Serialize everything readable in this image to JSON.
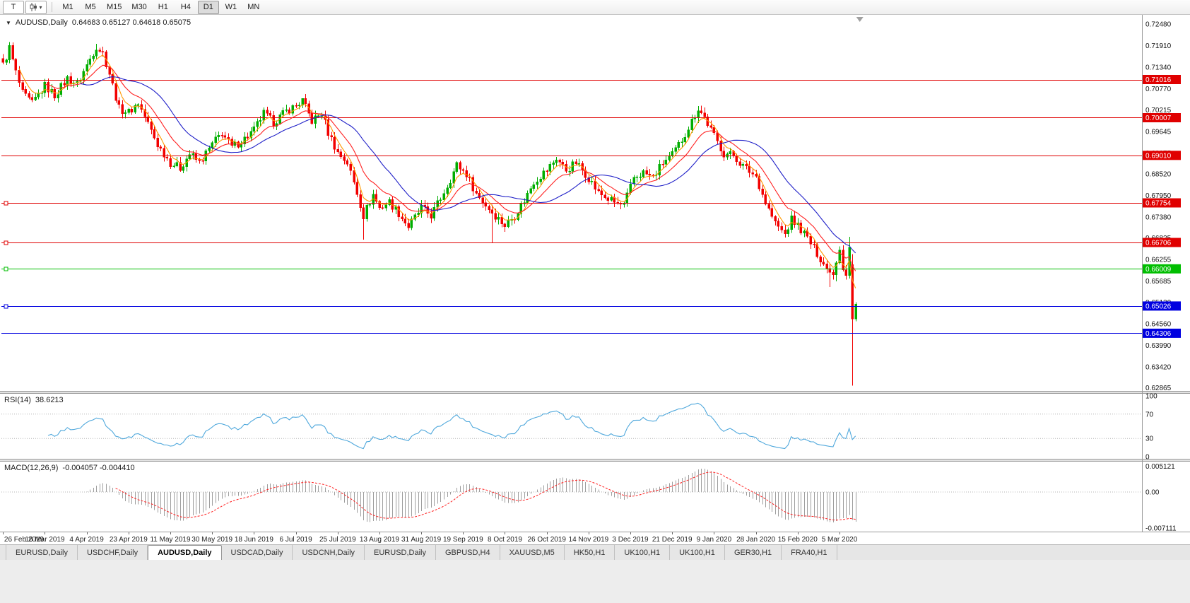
{
  "toolbar": {
    "tool_button": "T",
    "timeframes": [
      "M1",
      "M5",
      "M15",
      "M30",
      "H1",
      "H4",
      "D1",
      "W1",
      "MN"
    ],
    "active_timeframe": "D1"
  },
  "title": {
    "collapse_icon": "▼",
    "symbol": "AUDUSD,Daily",
    "ohlc": "0.64683 0.65127 0.64618 0.65075"
  },
  "rsi_panel": {
    "label": "RSI(14)",
    "value": "38.6213",
    "ticks": [
      "100",
      "70",
      "30",
      "0"
    ]
  },
  "macd_panel": {
    "label": "MACD(12,26,9)",
    "values": "-0.004057 -0.004410",
    "ticks": [
      "0.005121",
      "0.00",
      "-0.007111"
    ]
  },
  "tabs": {
    "items": [
      "EURUSD,Daily",
      "USDCHF,Daily",
      "AUDUSD,Daily",
      "USDCAD,Daily",
      "USDCNH,Daily",
      "EURUSD,Daily",
      "GBPUSD,H4",
      "XAUUSD,M5",
      "HK50,H1",
      "UK100,H1",
      "UK100,H1",
      "GER30,H1",
      "FRA40,H1"
    ],
    "active_index": 2
  },
  "colors": {
    "candle_up": "#00AE00",
    "candle_down": "#F20000",
    "hline_red": "#E00000",
    "hline_green": "#00BE00",
    "hline_blue": "#0000E0",
    "rsi_line": "#4FA8DC",
    "macd_hist": "#9E9E9E",
    "macd_signal": "#FF2222",
    "level_dotted": "#B4B4B4"
  },
  "chart_data": {
    "type": "candlestick",
    "symbol": "AUDUSD",
    "period": "Daily",
    "current_bar": {
      "open": 0.64683,
      "high": 0.65127,
      "low": 0.64618,
      "close": 0.65075
    },
    "y_range": [
      0.6278,
      0.7269
    ],
    "y_ticks": [
      "0.72480",
      "0.71910",
      "0.71340",
      "0.70770",
      "0.70215",
      "0.69645",
      "0.69075",
      "0.68520",
      "0.67950",
      "0.67380",
      "0.66825",
      "0.66255",
      "0.65685",
      "0.65130",
      "0.64560",
      "0.63990",
      "0.63420",
      "0.62865"
    ],
    "x_labels": [
      "26 Feb 2019",
      "16 Mar 2019",
      "4 Apr 2019",
      "23 Apr 2019",
      "11 May 2019",
      "30 May 2019",
      "18 Jun 2019",
      "6 Jul 2019",
      "25 Jul 2019",
      "13 Aug 2019",
      "31 Aug 2019",
      "19 Sep 2019",
      "8 Oct 2019",
      "26 Oct 2019",
      "14 Nov 2019",
      "3 Dec 2019",
      "21 Dec 2019",
      "9 Jan 2020",
      "28 Jan 2020",
      "15 Feb 2020",
      "5 Mar 2020"
    ],
    "x_label_indices": [
      0,
      13,
      26,
      39,
      52,
      65,
      78,
      91,
      104,
      117,
      130,
      143,
      156,
      169,
      182,
      195,
      208,
      221,
      234,
      247,
      260
    ],
    "bars_total": 266,
    "trend_anchors": [
      [
        0,
        0.714
      ],
      [
        2,
        0.7185
      ],
      [
        4,
        0.712
      ],
      [
        6,
        0.7065
      ],
      [
        9,
        0.7038
      ],
      [
        13,
        0.7085
      ],
      [
        16,
        0.706
      ],
      [
        20,
        0.7105
      ],
      [
        23,
        0.709
      ],
      [
        26,
        0.714
      ],
      [
        29,
        0.719
      ],
      [
        31,
        0.7172
      ],
      [
        33,
        0.7118
      ],
      [
        36,
        0.7025
      ],
      [
        39,
        0.7015
      ],
      [
        42,
        0.704
      ],
      [
        45,
        0.6985
      ],
      [
        48,
        0.693
      ],
      [
        52,
        0.6882
      ],
      [
        55,
        0.6868
      ],
      [
        58,
        0.6905
      ],
      [
        61,
        0.6882
      ],
      [
        65,
        0.693
      ],
      [
        68,
        0.6962
      ],
      [
        71,
        0.6922
      ],
      [
        75,
        0.6945
      ],
      [
        78,
        0.6968
      ],
      [
        81,
        0.7012
      ],
      [
        84,
        0.6988
      ],
      [
        88,
        0.7018
      ],
      [
        91,
        0.7032
      ],
      [
        93,
        0.7046
      ],
      [
        96,
        0.6992
      ],
      [
        99,
        0.7012
      ],
      [
        101,
        0.6962
      ],
      [
        104,
        0.6908
      ],
      [
        107,
        0.6882
      ],
      [
        110,
        0.6802
      ],
      [
        112,
        0.6742
      ],
      [
        115,
        0.6798
      ],
      [
        117,
        0.6762
      ],
      [
        120,
        0.6778
      ],
      [
        123,
        0.6748
      ],
      [
        126,
        0.6712
      ],
      [
        130,
        0.6762
      ],
      [
        133,
        0.6742
      ],
      [
        136,
        0.6788
      ],
      [
        139,
        0.6838
      ],
      [
        141,
        0.6876
      ],
      [
        144,
        0.6852
      ],
      [
        147,
        0.68
      ],
      [
        150,
        0.677
      ],
      [
        153,
        0.6742
      ],
      [
        156,
        0.6716
      ],
      [
        159,
        0.6742
      ],
      [
        162,
        0.6782
      ],
      [
        165,
        0.6832
      ],
      [
        169,
        0.6862
      ],
      [
        172,
        0.6894
      ],
      [
        175,
        0.6862
      ],
      [
        178,
        0.6882
      ],
      [
        182,
        0.6842
      ],
      [
        185,
        0.6802
      ],
      [
        188,
        0.6786
      ],
      [
        191,
        0.6772
      ],
      [
        193,
        0.6768
      ],
      [
        196,
        0.6842
      ],
      [
        199,
        0.6856
      ],
      [
        202,
        0.6842
      ],
      [
        205,
        0.6882
      ],
      [
        208,
        0.6902
      ],
      [
        211,
        0.6942
      ],
      [
        214,
        0.6992
      ],
      [
        216,
        0.7026
      ],
      [
        218,
        0.7002
      ],
      [
        221,
        0.6952
      ],
      [
        224,
        0.6906
      ],
      [
        227,
        0.6902
      ],
      [
        230,
        0.6872
      ],
      [
        234,
        0.6846
      ],
      [
        237,
        0.6776
      ],
      [
        240,
        0.6722
      ],
      [
        243,
        0.6692
      ],
      [
        245,
        0.6732
      ],
      [
        247,
        0.6716
      ],
      [
        250,
        0.6682
      ],
      [
        253,
        0.6642
      ],
      [
        256,
        0.6602
      ],
      [
        258,
        0.6586
      ],
      [
        260,
        0.6652
      ],
      [
        261,
        0.66
      ],
      [
        262,
        0.6585
      ],
      [
        263,
        0.6658
      ],
      [
        264,
        0.6468
      ],
      [
        265,
        0.65075
      ]
    ],
    "bar_overrides": {
      "264": [
        0.6612,
        0.664,
        0.6292,
        0.6468
      ],
      "265": [
        0.64683,
        0.65127,
        0.64618,
        0.65075
      ]
    },
    "high_overrides": {
      "29": 0.7196,
      "93": 0.705,
      "216": 0.7032,
      "263": 0.6686
    },
    "low_overrides": {
      "52": 0.6865,
      "112": 0.6678,
      "152": 0.6671,
      "257": 0.6553,
      "259": 0.6568
    },
    "hlines": [
      {
        "price": 0.71016,
        "label": "0.71016",
        "color": "#E00000",
        "handle": false
      },
      {
        "price": 0.70007,
        "label": "0.70007",
        "color": "#E00000",
        "handle": false
      },
      {
        "price": 0.6901,
        "label": "0.69010",
        "color": "#E00000",
        "handle": false
      },
      {
        "price": 0.67754,
        "label": "0.67754",
        "color": "#E00000",
        "handle": true
      },
      {
        "price": 0.66706,
        "label": "0.66706",
        "color": "#E00000",
        "handle": true
      },
      {
        "price": 0.66009,
        "label": "0.66009",
        "color": "#00BE00",
        "handle": true
      },
      {
        "price": 0.65026,
        "label": "0.65026",
        "color": "#0000E0",
        "handle": true
      },
      {
        "price": 0.64306,
        "label": "0.64306",
        "color": "#0000E0",
        "handle": false
      }
    ],
    "moving_averages": [
      {
        "type": "ema",
        "period": 5,
        "color": "#FF9900"
      },
      {
        "type": "ema",
        "period": 13,
        "color": "#FF2020"
      },
      {
        "type": "sma",
        "period": 24,
        "color": "#2020C8"
      }
    ],
    "rsi": {
      "period": 14,
      "current": 38.6213,
      "range": [
        0,
        100
      ],
      "levels": [
        70,
        30
      ]
    },
    "macd": {
      "fast": 12,
      "slow": 26,
      "signal": 9,
      "current_main": -0.004057,
      "current_signal": -0.00441,
      "range": [
        -0.0078,
        0.006
      ]
    }
  }
}
